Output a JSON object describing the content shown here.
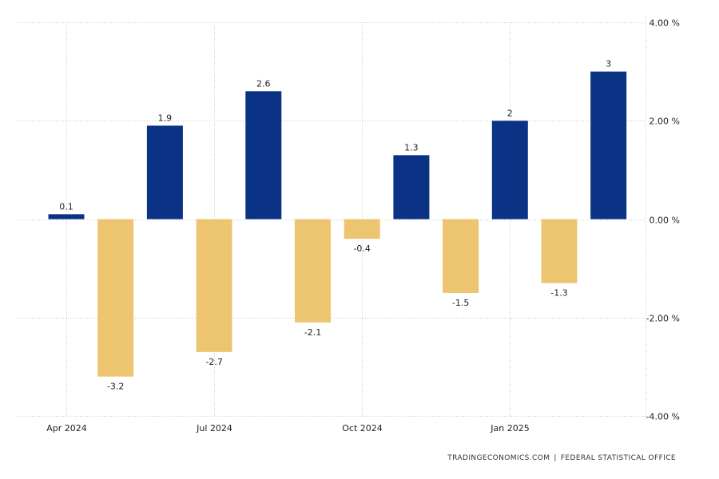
{
  "chart_data": {
    "type": "bar",
    "categories": [
      "Apr 2024",
      "May 2024",
      "Jun 2024",
      "Jul 2024",
      "Aug 2024",
      "Sep 2024",
      "Oct 2024",
      "Nov 2024",
      "Dec 2024",
      "Jan 2025",
      "Feb 2025",
      "Mar 2025"
    ],
    "values": [
      0.1,
      -3.2,
      1.9,
      -2.7,
      2.6,
      -2.1,
      -0.4,
      1.3,
      -1.5,
      2,
      -1.3,
      3
    ],
    "data_labels": [
      "0.1",
      "-3.2",
      "1.9",
      "-2.7",
      "2.6",
      "-2.1",
      "-0.4",
      "1.3",
      "-1.5",
      "2",
      "-1.3",
      "3"
    ],
    "x_tick_labels": [
      {
        "label": "Apr 2024",
        "category_index": 0
      },
      {
        "label": "Jul 2024",
        "category_index": 3
      },
      {
        "label": "Oct 2024",
        "category_index": 6
      },
      {
        "label": "Jan 2025",
        "category_index": 9
      }
    ],
    "y_ticks": [
      4,
      2,
      0,
      -2,
      -4
    ],
    "y_tick_labels": [
      "4.00 %",
      "2.00 %",
      "0.00 %",
      "-2.00 %",
      "-4.00 %"
    ],
    "ylim": [
      -4,
      4
    ],
    "y_axis_side": "right",
    "grid": true,
    "colors": {
      "positive": "#0a3285",
      "negative": "#edc570",
      "grid": "#c8c8c8"
    }
  },
  "source": {
    "provider": "TRADINGECONOMICS.COM",
    "separator": "|",
    "office": "FEDERAL STATISTICAL OFFICE"
  }
}
